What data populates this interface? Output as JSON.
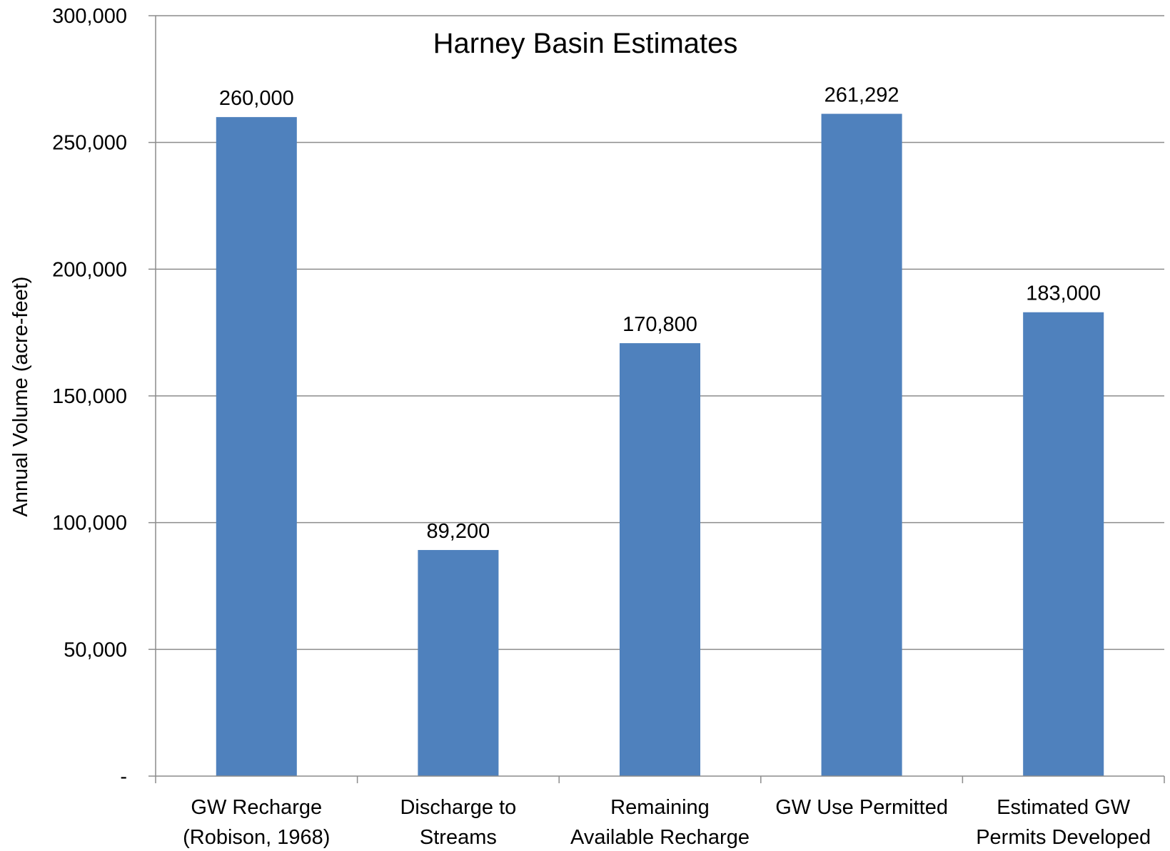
{
  "chart_data": {
    "type": "bar",
    "title": "Harney Basin Estimates",
    "xlabel": "",
    "ylabel": "Annual Volume (acre-feet)",
    "ylim": [
      0,
      300000
    ],
    "yticks": [
      {
        "value": 0,
        "label": "-"
      },
      {
        "value": 50000,
        "label": "50,000"
      },
      {
        "value": 100000,
        "label": "100,000"
      },
      {
        "value": 150000,
        "label": "150,000"
      },
      {
        "value": 200000,
        "label": "200,000"
      },
      {
        "value": 250000,
        "label": "250,000"
      },
      {
        "value": 300000,
        "label": "300,000"
      }
    ],
    "categories": [
      [
        "GW Recharge",
        "(Robison, 1968)"
      ],
      [
        "Discharge to",
        "Streams"
      ],
      [
        "Remaining",
        "Available Recharge"
      ],
      [
        "GW Use Permitted"
      ],
      [
        "Estimated GW",
        "Permits Developed"
      ]
    ],
    "values": [
      260000,
      89200,
      170800,
      261292,
      183000
    ],
    "data_labels": [
      "260,000",
      "89,200",
      "170,800",
      "261,292",
      "183,000"
    ],
    "grid": true,
    "legend": "none",
    "colors": {
      "bar": "#4F81BD",
      "gridline": "#8C8C8C",
      "axis": "#8C8C8C",
      "text": "#000000"
    }
  }
}
